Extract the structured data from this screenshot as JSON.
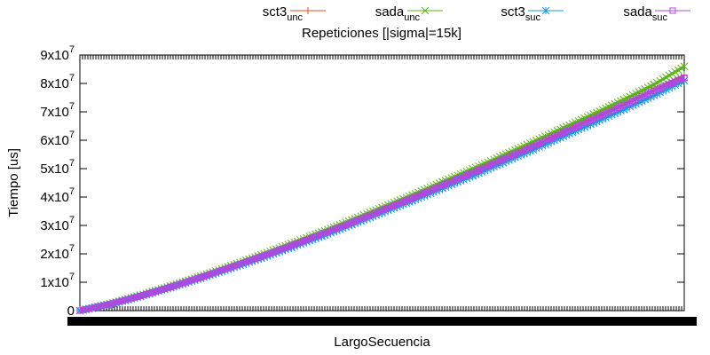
{
  "chart_data": {
    "type": "line",
    "title": "Repeticiones [|sigma|=15k]",
    "xlabel": "LargoSecuencia",
    "ylabel": "Tiempo [us]",
    "ylim": [
      0,
      90000000
    ],
    "xlim": [
      0,
      1000
    ],
    "grid": false,
    "legend_position": "top",
    "y_ticks": [
      {
        "value": 0,
        "base": "0",
        "exp": ""
      },
      {
        "value": 10000000,
        "base": "1x10",
        "exp": "7"
      },
      {
        "value": 20000000,
        "base": "2x10",
        "exp": "7"
      },
      {
        "value": 30000000,
        "base": "3x10",
        "exp": "7"
      },
      {
        "value": 40000000,
        "base": "4x10",
        "exp": "7"
      },
      {
        "value": 50000000,
        "base": "5x10",
        "exp": "7"
      },
      {
        "value": 60000000,
        "base": "6x10",
        "exp": "7"
      },
      {
        "value": 70000000,
        "base": "7x10",
        "exp": "7"
      },
      {
        "value": 80000000,
        "base": "8x10",
        "exp": "7"
      },
      {
        "value": 90000000,
        "base": "9x10",
        "exp": "7"
      }
    ],
    "x": [
      0,
      50,
      100,
      150,
      200,
      250,
      300,
      350,
      400,
      450,
      500,
      550,
      600,
      650,
      700,
      750,
      800,
      850,
      900,
      950,
      1000
    ],
    "series": [
      {
        "name": "sct3",
        "sub": "unc",
        "color": "#e0501d",
        "marker": "plus",
        "values": [
          0,
          2300000,
          5200000,
          8400000,
          11800000,
          15400000,
          19100000,
          23000000,
          27000000,
          31200000,
          35500000,
          39800000,
          44300000,
          48900000,
          53500000,
          58200000,
          63000000,
          67800000,
          72700000,
          77700000,
          82800000
        ]
      },
      {
        "name": "sada",
        "sub": "unc",
        "color": "#5cb31a",
        "marker": "cross",
        "values": [
          0,
          2400000,
          5400000,
          8600000,
          12100000,
          15800000,
          19600000,
          23600000,
          27700000,
          31900000,
          36300000,
          40700000,
          45300000,
          49900000,
          54600000,
          59400000,
          64300000,
          69200000,
          74300000,
          79600000,
          86000000
        ]
      },
      {
        "name": "sct3",
        "sub": "suc",
        "color": "#1a96e0",
        "marker": "star",
        "values": [
          0,
          2200000,
          5000000,
          8100000,
          11400000,
          14900000,
          18500000,
          22300000,
          26200000,
          30300000,
          34500000,
          38700000,
          43100000,
          47500000,
          52100000,
          56700000,
          61400000,
          66100000,
          70900000,
          75800000,
          81000000
        ]
      },
      {
        "name": "sada",
        "sub": "suc",
        "color": "#b048e0",
        "marker": "square",
        "values": [
          0,
          2300000,
          5150000,
          8300000,
          11700000,
          15300000,
          19000000,
          22900000,
          26900000,
          31000000,
          35300000,
          39600000,
          44100000,
          48600000,
          53200000,
          57900000,
          62700000,
          67500000,
          72400000,
          77400000,
          82000000
        ]
      }
    ]
  }
}
